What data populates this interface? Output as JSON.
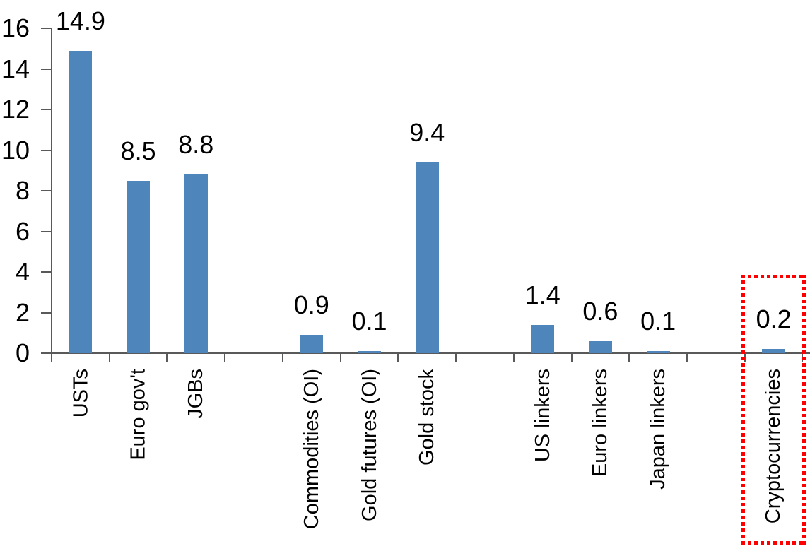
{
  "chart_data": {
    "type": "bar",
    "title": "",
    "xlabel": "",
    "ylabel": "",
    "ylim": [
      0,
      16
    ],
    "yticks": [
      0,
      2,
      4,
      6,
      8,
      10,
      12,
      14,
      16
    ],
    "grid": false,
    "legend": false,
    "background_color": "#ffffff",
    "bar_color": "#4e86bc",
    "axis_color": "#595959",
    "text_color": "#000000",
    "categories": [
      "USTs",
      "Euro gov't",
      "JGBs",
      "",
      "Commodities (OI)",
      "Gold futures (OI)",
      "Gold stock",
      "",
      "US linkers",
      "Euro linkers",
      "Japan linkers",
      "",
      "Cryptocurrencies"
    ],
    "values": [
      14.9,
      8.5,
      8.8,
      null,
      0.9,
      0.1,
      9.4,
      null,
      1.4,
      0.6,
      0.1,
      null,
      0.2
    ],
    "value_labels": [
      "14.9",
      "8.5",
      "8.8",
      "",
      "0.9",
      "0.1",
      "9.4",
      "",
      "1.4",
      "0.6",
      "0.1",
      "",
      "0.2"
    ],
    "highlight": {
      "category": "Cryptocurrencies",
      "style": "red-dotted-rectangle",
      "color": "#ff0000"
    }
  }
}
